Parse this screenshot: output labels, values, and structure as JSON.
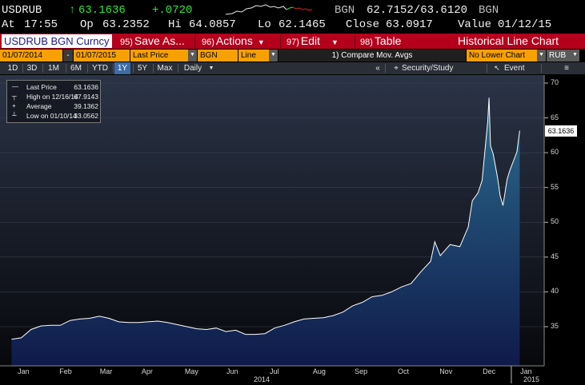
{
  "quote": {
    "ticker": "USDRUB",
    "arrow": "↑",
    "last": "63.1636",
    "change": "+.0720",
    "source": "BGN",
    "bid_ask": "62.7152/63.6120",
    "source2": "BGN",
    "time_label": "At",
    "time": "17:55",
    "open_label": "Op",
    "open": "63.2352",
    "high_label": "Hi",
    "high": "64.0857",
    "low_label": "Lo",
    "low": "62.1465",
    "close_label": "Close",
    "close": "63.0917",
    "value_label": "Value",
    "value_date": "01/12/15"
  },
  "menu": {
    "security": "USDRUB BGN Curncy",
    "items": [
      {
        "num": "95)",
        "label": "Save As..."
      },
      {
        "num": "96)",
        "label": "Actions"
      },
      {
        "num": "97)",
        "label": "Edit"
      },
      {
        "num": "98)",
        "label": "Table"
      }
    ],
    "title": "Historical Line Chart"
  },
  "params": {
    "start": "01/07/2014",
    "dash": "-",
    "end": "01/07/2015",
    "field": "Last Price",
    "source": "BGN",
    "style": "Line",
    "compare": "1) Compare Mov. Avgs",
    "lower": "No Lower Chart",
    "currency": "RUB"
  },
  "ranges": {
    "buttons": [
      "1D",
      "3D",
      "1M",
      "6M",
      "YTD",
      "1Y",
      "5Y",
      "Max"
    ],
    "active": "1Y",
    "period": "Daily",
    "collapse": "«",
    "security_study": "Security/Study",
    "event": "Event"
  },
  "legend": {
    "rows": [
      {
        "label": "Last Price",
        "value": "63.1636"
      },
      {
        "label": "High on 12/16/14",
        "value": "67.9143"
      },
      {
        "label": "Average",
        "value": "39.1362"
      },
      {
        "label": "Low on 01/10/14",
        "value": "33.0562"
      }
    ]
  },
  "last_marker": "63.1636",
  "colors": {
    "menu_red": "#b5001c",
    "param_orange": "#f7a100",
    "positive_green": "#2fe83a",
    "area_fill_top": "#2c6d8f",
    "area_fill_bottom": "#0f1a4a",
    "line": "#ffffff"
  },
  "chart_data": {
    "type": "area",
    "title": "",
    "xlabel": "",
    "ylabel": "",
    "ylim": [
      30,
      70
    ],
    "yticks": [
      35,
      40,
      45,
      50,
      55,
      60,
      65,
      70
    ],
    "months": [
      "Jan",
      "Feb",
      "Mar",
      "Apr",
      "May",
      "Jun",
      "Jul",
      "Aug",
      "Sep",
      "Oct",
      "Nov",
      "Dec",
      "Jan"
    ],
    "year_labels": [
      "2014",
      "2015"
    ],
    "series": [
      {
        "name": "Last Price",
        "x": [
          "2014-01-07",
          "2014-01-14",
          "2014-01-21",
          "2014-01-28",
          "2014-02-04",
          "2014-02-11",
          "2014-02-18",
          "2014-02-25",
          "2014-03-04",
          "2014-03-11",
          "2014-03-18",
          "2014-03-25",
          "2014-04-01",
          "2014-04-08",
          "2014-04-15",
          "2014-04-22",
          "2014-04-29",
          "2014-05-06",
          "2014-05-13",
          "2014-05-20",
          "2014-05-27",
          "2014-06-03",
          "2014-06-10",
          "2014-06-17",
          "2014-06-24",
          "2014-07-01",
          "2014-07-08",
          "2014-07-15",
          "2014-07-22",
          "2014-07-29",
          "2014-08-05",
          "2014-08-12",
          "2014-08-19",
          "2014-08-26",
          "2014-09-02",
          "2014-09-09",
          "2014-09-16",
          "2014-09-23",
          "2014-09-30",
          "2014-10-07",
          "2014-10-14",
          "2014-10-21",
          "2014-10-28",
          "2014-11-04",
          "2014-11-07",
          "2014-11-11",
          "2014-11-18",
          "2014-11-25",
          "2014-12-01",
          "2014-12-04",
          "2014-12-08",
          "2014-12-11",
          "2014-12-15",
          "2014-12-16",
          "2014-12-17",
          "2014-12-19",
          "2014-12-22",
          "2014-12-24",
          "2014-12-26",
          "2014-12-29",
          "2014-12-31",
          "2015-01-05",
          "2015-01-07"
        ],
        "values": [
          33.2,
          33.4,
          34.6,
          35.1,
          35.2,
          35.2,
          35.9,
          36.1,
          36.2,
          36.5,
          36.2,
          35.7,
          35.6,
          35.6,
          35.7,
          35.8,
          35.6,
          35.3,
          35.0,
          34.7,
          34.6,
          34.8,
          34.3,
          34.5,
          33.9,
          33.9,
          34.0,
          34.8,
          35.2,
          35.7,
          36.1,
          36.2,
          36.3,
          36.6,
          37.1,
          38.0,
          38.5,
          39.3,
          39.5,
          40.0,
          40.7,
          41.2,
          42.9,
          44.4,
          47.2,
          45.2,
          46.8,
          46.5,
          49.3,
          53.1,
          54.2,
          56.0,
          64.4,
          67.9,
          61.0,
          59.8,
          56.5,
          53.8,
          52.4,
          56.2,
          57.5,
          60.1,
          63.16
        ]
      }
    ]
  }
}
